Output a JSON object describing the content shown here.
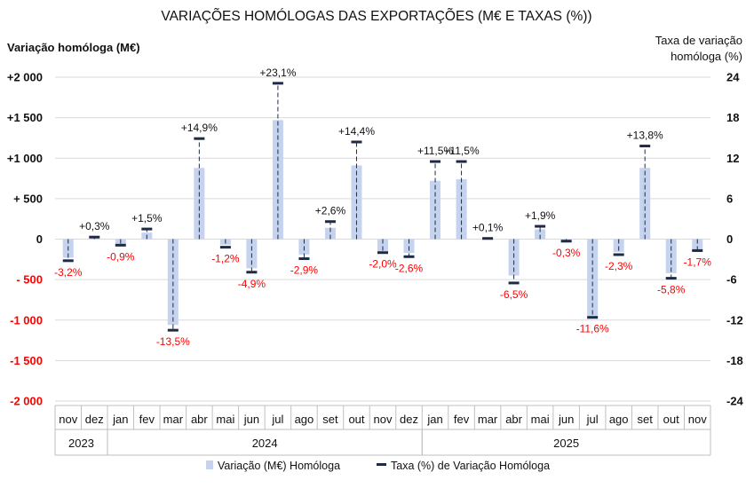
{
  "chart_data": {
    "type": "bar-with-markers",
    "title": "VARIAÇÕES HOMÓLOGAS DAS EXPORTAÇÕES (M€ E TAXAS (%))",
    "ylabel_left": "Variação homóloga (M€)",
    "ylabel_right_line1": "Taxa de variação",
    "ylabel_right_line2": "homóloga (%)",
    "ylim_left": [
      -2000,
      2000
    ],
    "ylim_right": [
      -24,
      24
    ],
    "left_ticks": [
      {
        "v": 2000,
        "label": "+2 000"
      },
      {
        "v": 1500,
        "label": "+1 500"
      },
      {
        "v": 1000,
        "label": "+1 000"
      },
      {
        "v": 500,
        "label": "+ 500"
      },
      {
        "v": 0,
        "label": "0"
      },
      {
        "v": -500,
        "label": "- 500"
      },
      {
        "v": -1000,
        "label": "-1 000"
      },
      {
        "v": -1500,
        "label": "-1 500"
      },
      {
        "v": -2000,
        "label": "-2 000"
      }
    ],
    "right_ticks": [
      {
        "v": 24,
        "label": "24"
      },
      {
        "v": 18,
        "label": "18"
      },
      {
        "v": 12,
        "label": "12"
      },
      {
        "v": 6,
        "label": "6"
      },
      {
        "v": 0,
        "label": "0"
      },
      {
        "v": -6,
        "label": "-6"
      },
      {
        "v": -12,
        "label": "-12"
      },
      {
        "v": -18,
        "label": "-18"
      },
      {
        "v": -24,
        "label": "-24"
      }
    ],
    "categories": [
      "nov",
      "dez",
      "jan",
      "fev",
      "mar",
      "abr",
      "mai",
      "jun",
      "jul",
      "ago",
      "set",
      "out",
      "nov",
      "dez",
      "jan",
      "fev",
      "mar",
      "abr",
      "mai",
      "jun",
      "jul",
      "ago",
      "set",
      "out",
      "nov"
    ],
    "years": [
      {
        "label": "2023",
        "start": 0,
        "end": 1
      },
      {
        "label": "2024",
        "start": 2,
        "end": 13
      },
      {
        "label": "2025",
        "start": 14,
        "end": 24
      }
    ],
    "series": [
      {
        "name": "Variação (M€) Homóloga",
        "axis": "left",
        "color": "#c5d3ef",
        "values": [
          -230,
          10,
          -60,
          80,
          -1060,
          880,
          -70,
          -360,
          1470,
          -190,
          140,
          910,
          -150,
          -170,
          720,
          740,
          10,
          -450,
          120,
          -40,
          -960,
          -160,
          880,
          -420,
          -150
        ]
      },
      {
        "name": "Taxa (%) de Variação Homóloga",
        "axis": "right",
        "color": "#1f2a44",
        "values": [
          -3.2,
          0.3,
          -0.9,
          1.5,
          -13.5,
          14.9,
          -1.2,
          -4.9,
          23.1,
          -2.9,
          2.6,
          14.4,
          -2.0,
          -2.6,
          11.5,
          11.5,
          0.1,
          -6.5,
          1.9,
          -0.3,
          -11.6,
          -2.3,
          13.8,
          -5.8,
          -1.7
        ],
        "labels": [
          "-3,2%",
          "+0,3%",
          "-0,9%",
          "+1,5%",
          "-13,5%",
          "+14,9%",
          "-1,2%",
          "-4,9%",
          "+23,1%",
          "-2,9%",
          "+2,6%",
          "+14,4%",
          "-2,0%",
          "-2,6%",
          "+11,5%",
          "+11,5%",
          "+0,1%",
          "-6,5%",
          "+1,9%",
          "-0,3%",
          "-11,6%",
          "-2,3%",
          "+13,8%",
          "-5,8%",
          "-1,7%"
        ]
      }
    ],
    "positive_label_color": "#111111",
    "negative_label_color": "#ff0000",
    "grid": true,
    "legend_position": "bottom"
  }
}
